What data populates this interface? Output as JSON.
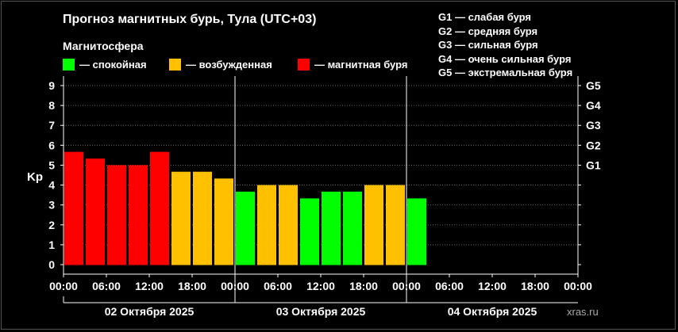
{
  "title": "Прогноз магнитных бурь, Тула (UTC+03)",
  "legend": {
    "title": "Магнитосфера",
    "items": [
      {
        "label": "— спокойная",
        "color": "#00ff00"
      },
      {
        "label": "— возбужденная",
        "color": "#ffc000"
      },
      {
        "label": "— магнитная буря",
        "color": "#ff0000"
      }
    ]
  },
  "storm_levels": [
    "G1 — слабая буря",
    "G2 — средняя буря",
    "G3 — сильная буря",
    "G4 — очень сильная буря",
    "G5 — экстремальная буря"
  ],
  "credit": "xras.ru",
  "chart_data": {
    "type": "bar",
    "ylabel": "Kp",
    "ylim": [
      0,
      9
    ],
    "y_ticks": [
      "0",
      "1",
      "2",
      "3",
      "4",
      "5",
      "6",
      "7",
      "8",
      "9"
    ],
    "right_ticks": [
      {
        "value": 5,
        "label": "G1"
      },
      {
        "value": 6,
        "label": "G2"
      },
      {
        "value": 7,
        "label": "G3"
      },
      {
        "value": 8,
        "label": "G4"
      },
      {
        "value": 9,
        "label": "G5"
      }
    ],
    "bin_hours": 3,
    "x_range_hours": [
      0,
      72
    ],
    "x_ticks": [
      "00:00",
      "06:00",
      "12:00",
      "18:00",
      "00:00",
      "06:00",
      "12:00",
      "18:00",
      "00:00",
      "06:00",
      "12:00",
      "18:00",
      "00:00"
    ],
    "days": [
      "02 Октября 2025",
      "03 Октября 2025",
      "04 Октября 2025"
    ],
    "values": [
      5.67,
      5.33,
      5.0,
      5.0,
      5.67,
      4.67,
      4.67,
      4.33,
      3.67,
      4.0,
      4.0,
      3.33,
      3.67,
      3.67,
      4.0,
      4.0,
      3.33
    ],
    "colors": [
      "#ff0000",
      "#ff0000",
      "#ff0000",
      "#ff0000",
      "#ff0000",
      "#ffc000",
      "#ffc000",
      "#ffc000",
      "#00ff00",
      "#ffc000",
      "#ffc000",
      "#00ff00",
      "#00ff00",
      "#00ff00",
      "#ffc000",
      "#ffc000",
      "#00ff00"
    ],
    "grid": "horizontal dotted",
    "axis_color": "#ffffff",
    "grid_color": "#666666"
  }
}
